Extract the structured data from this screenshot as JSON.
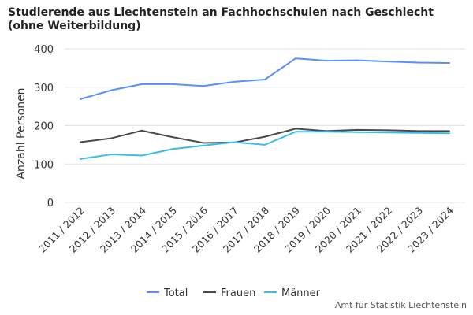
{
  "chart_data": {
    "type": "line",
    "title": "Studierende aus Liechtenstein an Fachhochschulen nach Geschlecht (ohne Weiterbildung)",
    "xlabel": "",
    "ylabel": "Anzahl Personen",
    "ylim": [
      0,
      400
    ],
    "yticks": [
      "0",
      "100",
      "200",
      "300",
      "400"
    ],
    "grid": true,
    "legend_position": "bottom",
    "categories": [
      "2011 / 2012",
      "2012 / 2013",
      "2013 / 2014",
      "2014 / 2015",
      "2015 / 2016",
      "2016 / 2017",
      "2017 / 2018",
      "2018 / 2019",
      "2019 / 2020",
      "2020 / 2021",
      "2021 / 2022",
      "2022 / 2023",
      "2023 / 2024"
    ],
    "series": [
      {
        "name": "Total",
        "color": "#5b8ff9",
        "values": [
          269,
          292,
          308,
          308,
          303,
          314,
          320,
          375,
          369,
          370,
          367,
          364,
          363
        ]
      },
      {
        "name": "Frauen",
        "color": "#4a4a4a",
        "values": [
          157,
          167,
          187,
          170,
          155,
          156,
          171,
          192,
          186,
          189,
          188,
          186,
          186
        ]
      },
      {
        "name": "Männer",
        "color": "#3cbde8",
        "values": [
          113,
          125,
          122,
          139,
          148,
          157,
          150,
          184,
          184,
          183,
          182,
          181,
          180
        ]
      }
    ],
    "source": "Amt für Statistik Liechtenstein"
  }
}
